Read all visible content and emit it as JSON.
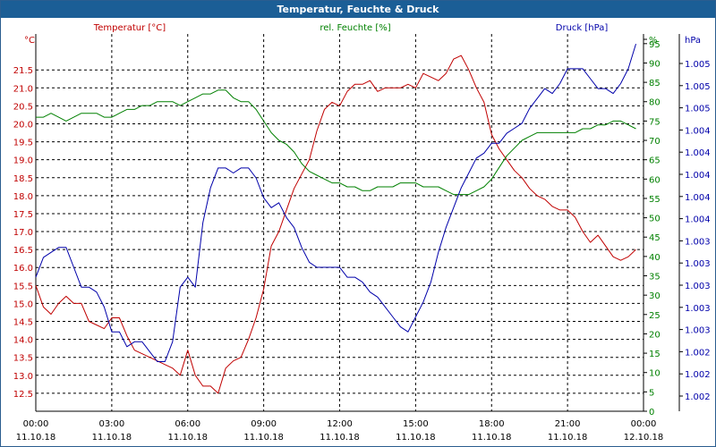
{
  "window": {
    "title": "Temperatur, Feuchte & Druck"
  },
  "chart_data": {
    "type": "line",
    "title": "Temperatur, Feuchte & Druck",
    "colors": {
      "temp": "#c00000",
      "hum": "#008000",
      "press": "#0000aa",
      "grid": "#000000"
    },
    "x_ticks": [
      {
        "time": "00:00",
        "date": "11.10.18"
      },
      {
        "time": "03:00",
        "date": "11.10.18"
      },
      {
        "time": "06:00",
        "date": "11.10.18"
      },
      {
        "time": "09:00",
        "date": "11.10.18"
      },
      {
        "time": "12:00",
        "date": "11.10.18"
      },
      {
        "time": "15:00",
        "date": "11.10.18"
      },
      {
        "time": "18:00",
        "date": "11.10.18"
      },
      {
        "time": "21:00",
        "date": "11.10.18"
      },
      {
        "time": "00:00",
        "date": "12.10.18"
      }
    ],
    "xlim": [
      0,
      24
    ],
    "axes": {
      "temp": {
        "unit": "°C",
        "title": "Temperatur [°C]",
        "ylim": [
          12.0,
          22.5
        ],
        "ticks": [
          "12.5",
          "13.0",
          "13.5",
          "14.0",
          "14.5",
          "15.0",
          "15.5",
          "16.0",
          "16.5",
          "17.0",
          "17.5",
          "18.0",
          "18.5",
          "19.0",
          "19.5",
          "20.0",
          "20.5",
          "21.0",
          "21.5"
        ]
      },
      "hum": {
        "unit": "%",
        "title": "rel. Feuchte [%]",
        "ylim": [
          0,
          97.5
        ],
        "ticks": [
          "0",
          "5",
          "10",
          "15",
          "20",
          "25",
          "30",
          "35",
          "40",
          "45",
          "50",
          "55",
          "60",
          "65",
          "70",
          "75",
          "80",
          "85",
          "90",
          "95",
          "%"
        ]
      },
      "press": {
        "unit": "hPa",
        "title": "Druck [hPa]",
        "ylim": [
          1001.5,
          1005.3
        ],
        "ticks": [
          "1.002",
          "1.002",
          "1.002",
          "1.003",
          "1.003",
          "1.003",
          "1.003",
          "1.003",
          "1.004",
          "1.004",
          "1.004",
          "1.004",
          "1.004",
          "1.005",
          "1.005",
          "1.005"
        ]
      }
    },
    "series": [
      {
        "name": "Temperatur",
        "axis": "temp",
        "x": [
          0,
          0.3,
          0.6,
          0.9,
          1.2,
          1.5,
          1.8,
          2.1,
          2.4,
          2.7,
          3.0,
          3.3,
          3.6,
          3.9,
          4.2,
          4.5,
          4.8,
          5.1,
          5.4,
          5.7,
          6.0,
          6.3,
          6.6,
          6.9,
          7.2,
          7.5,
          7.8,
          8.1,
          8.4,
          8.7,
          9.0,
          9.3,
          9.6,
          9.9,
          10.2,
          10.5,
          10.8,
          11.1,
          11.4,
          11.7,
          12.0,
          12.3,
          12.6,
          12.9,
          13.2,
          13.5,
          13.8,
          14.1,
          14.4,
          14.7,
          15.0,
          15.3,
          15.6,
          15.9,
          16.2,
          16.5,
          16.8,
          17.1,
          17.4,
          17.7,
          18.0,
          18.3,
          18.6,
          18.9,
          19.2,
          19.5,
          19.8,
          20.1,
          20.4,
          20.7,
          21.0,
          21.3,
          21.6,
          21.9,
          22.2,
          22.5,
          22.8,
          23.1,
          23.4,
          23.7
        ],
        "y": [
          15.5,
          14.9,
          14.7,
          15.0,
          15.2,
          15.0,
          15.0,
          14.5,
          14.4,
          14.3,
          14.6,
          14.6,
          14.1,
          13.7,
          13.6,
          13.5,
          13.4,
          13.3,
          13.2,
          13.0,
          13.7,
          13.0,
          12.7,
          12.7,
          12.5,
          13.2,
          13.4,
          13.5,
          14.0,
          14.6,
          15.4,
          16.6,
          17.0,
          17.6,
          18.2,
          18.6,
          19.0,
          19.8,
          20.4,
          20.6,
          20.5,
          20.9,
          21.1,
          21.1,
          21.2,
          20.9,
          21.0,
          21.0,
          21.0,
          21.1,
          21.0,
          21.4,
          21.3,
          21.2,
          21.4,
          21.8,
          21.9,
          21.5,
          21.0,
          20.6,
          19.7,
          19.3,
          19.0,
          18.7,
          18.5,
          18.2,
          18.0,
          17.9,
          17.7,
          17.6,
          17.6,
          17.4,
          17.0,
          16.7,
          16.9,
          16.6,
          16.3,
          16.2,
          16.3,
          16.5
        ]
      },
      {
        "name": "rel. Feuchte",
        "axis": "hum",
        "x": [
          0,
          0.3,
          0.6,
          0.9,
          1.2,
          1.5,
          1.8,
          2.1,
          2.4,
          2.7,
          3.0,
          3.3,
          3.6,
          3.9,
          4.2,
          4.5,
          4.8,
          5.1,
          5.4,
          5.7,
          6.0,
          6.3,
          6.6,
          6.9,
          7.2,
          7.5,
          7.8,
          8.1,
          8.4,
          8.7,
          9.0,
          9.3,
          9.6,
          9.9,
          10.2,
          10.5,
          10.8,
          11.1,
          11.4,
          11.7,
          12.0,
          12.3,
          12.6,
          12.9,
          13.2,
          13.5,
          13.8,
          14.1,
          14.4,
          14.7,
          15.0,
          15.3,
          15.6,
          15.9,
          16.2,
          16.5,
          16.8,
          17.1,
          17.4,
          17.7,
          18.0,
          18.3,
          18.6,
          18.9,
          19.2,
          19.5,
          19.8,
          20.1,
          20.4,
          20.7,
          21.0,
          21.3,
          21.6,
          21.9,
          22.2,
          22.5,
          22.8,
          23.1,
          23.4,
          23.7
        ],
        "y": [
          76,
          76,
          77,
          76,
          75,
          76,
          77,
          77,
          77,
          76,
          76,
          77,
          78,
          78,
          79,
          79,
          80,
          80,
          80,
          79,
          80,
          81,
          82,
          82,
          83,
          83,
          81,
          80,
          80,
          78,
          75,
          72,
          70,
          69,
          67,
          64,
          62,
          61,
          60,
          59,
          59,
          58,
          58,
          57,
          57,
          58,
          58,
          58,
          59,
          59,
          59,
          58,
          58,
          58,
          57,
          56,
          56,
          56,
          57,
          58,
          60,
          63,
          66,
          68,
          70,
          71,
          72,
          72,
          72,
          72,
          72,
          72,
          73,
          73,
          74,
          74,
          75,
          75,
          74,
          73
        ]
      },
      {
        "name": "Druck",
        "axis": "press",
        "x": [
          0,
          0.3,
          0.6,
          0.9,
          1.2,
          1.5,
          1.8,
          2.1,
          2.4,
          2.7,
          3.0,
          3.3,
          3.6,
          3.9,
          4.2,
          4.5,
          4.8,
          5.1,
          5.4,
          5.7,
          6.0,
          6.3,
          6.6,
          6.9,
          7.2,
          7.5,
          7.8,
          8.1,
          8.4,
          8.7,
          9.0,
          9.3,
          9.6,
          9.9,
          10.2,
          10.5,
          10.8,
          11.1,
          11.4,
          11.7,
          12.0,
          12.3,
          12.6,
          12.9,
          13.2,
          13.5,
          13.8,
          14.1,
          14.4,
          14.7,
          15.0,
          15.3,
          15.6,
          15.9,
          16.2,
          16.5,
          16.8,
          17.1,
          17.4,
          17.7,
          18.0,
          18.3,
          18.6,
          18.9,
          19.2,
          19.5,
          19.8,
          20.1,
          20.4,
          20.7,
          21.0,
          21.3,
          21.6,
          21.9,
          22.2,
          22.5,
          22.8,
          23.1,
          23.4,
          23.7
        ],
        "y": [
          1002.85,
          1003.05,
          1003.1,
          1003.15,
          1003.15,
          1002.95,
          1002.75,
          1002.75,
          1002.7,
          1002.55,
          1002.3,
          1002.3,
          1002.15,
          1002.2,
          1002.2,
          1002.1,
          1002.0,
          1002.0,
          1002.2,
          1002.75,
          1002.85,
          1002.75,
          1003.4,
          1003.75,
          1003.95,
          1003.95,
          1003.9,
          1003.95,
          1003.95,
          1003.85,
          1003.65,
          1003.55,
          1003.6,
          1003.45,
          1003.35,
          1003.15,
          1003.0,
          1002.95,
          1002.95,
          1002.95,
          1002.95,
          1002.85,
          1002.85,
          1002.8,
          1002.7,
          1002.65,
          1002.55,
          1002.45,
          1002.35,
          1002.3,
          1002.45,
          1002.6,
          1002.8,
          1003.1,
          1003.35,
          1003.55,
          1003.75,
          1003.9,
          1004.05,
          1004.1,
          1004.2,
          1004.2,
          1004.3,
          1004.35,
          1004.4,
          1004.55,
          1004.65,
          1004.75,
          1004.7,
          1004.8,
          1004.95,
          1004.95,
          1004.95,
          1004.85,
          1004.75,
          1004.75,
          1004.7,
          1004.8,
          1004.95,
          1005.2
        ]
      }
    ]
  }
}
